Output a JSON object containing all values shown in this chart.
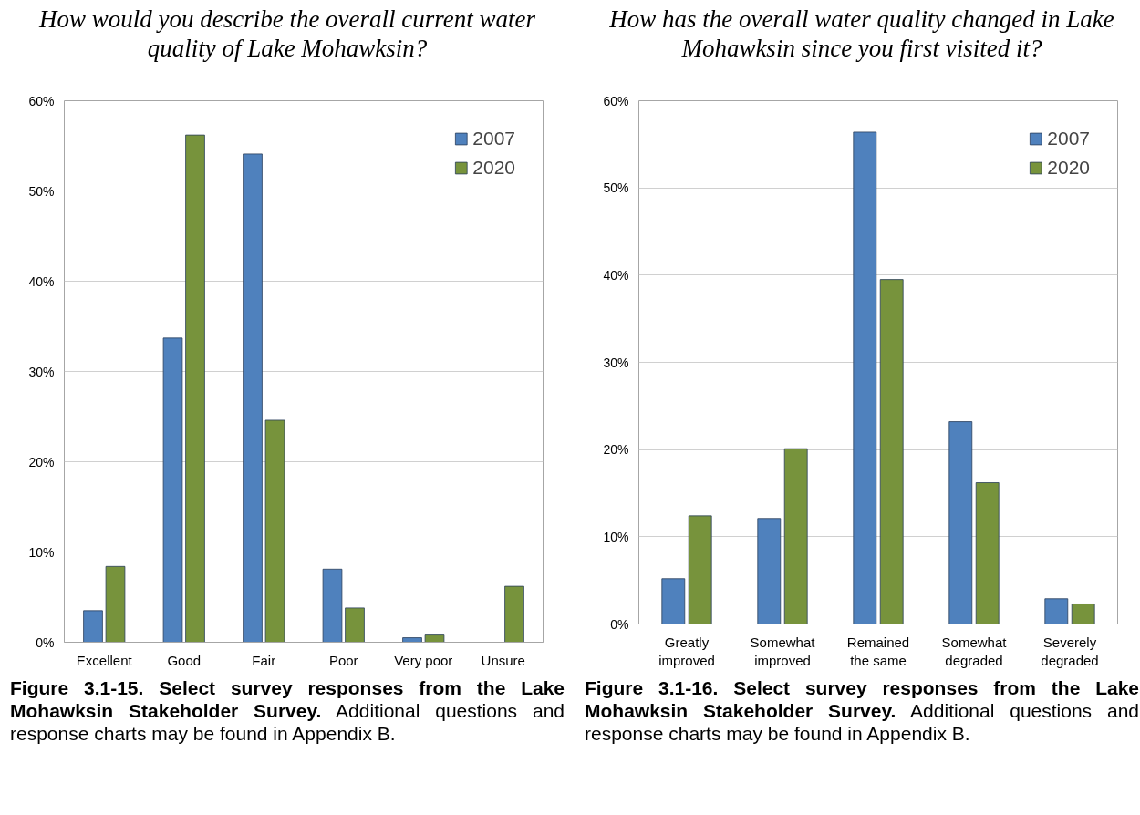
{
  "chart_data": [
    {
      "type": "bar",
      "title": "How would you describe the overall current water quality of Lake Mohawksin?",
      "categories": [
        "Excellent",
        "Good",
        "Fair",
        "Poor",
        "Very poor",
        "Unsure"
      ],
      "series": [
        {
          "name": "2007",
          "color": "#4f81bd",
          "values": [
            3.5,
            33.7,
            54.1,
            8.1,
            0.5,
            null
          ]
        },
        {
          "name": "2020",
          "color": "#77933c",
          "values": [
            8.4,
            56.2,
            24.6,
            3.8,
            0.8,
            6.2
          ]
        }
      ],
      "ylim": [
        0,
        60
      ],
      "yticks": [
        {
          "value": 0,
          "label": "0%"
        },
        {
          "value": 10,
          "label": "10%"
        },
        {
          "value": 20,
          "label": "20%"
        },
        {
          "value": 30,
          "label": "30%"
        },
        {
          "value": 40,
          "label": "40%"
        },
        {
          "value": 50,
          "label": "50%"
        },
        {
          "value": 60,
          "label": "60%"
        }
      ],
      "grid": "y",
      "legend": "top right",
      "annotations": [
        "Figure 3.1-15.  Select survey responses from the Lake Mohawksin Stakeholder Survey.",
        "Additional questions and response charts may be found in Appendix B."
      ]
    },
    {
      "type": "bar",
      "title": "How has the overall water quality changed in Lake Mohawksin since you first visited it?",
      "categories": [
        "Greatly improved",
        "Somewhat improved",
        "Remained the same",
        "Somewhat degraded",
        "Severely degraded"
      ],
      "series": [
        {
          "name": "2007",
          "color": "#4f81bd",
          "values": [
            5.2,
            12.1,
            56.4,
            23.2,
            2.9
          ]
        },
        {
          "name": "2020",
          "color": "#77933c",
          "values": [
            12.4,
            20.1,
            39.5,
            16.2,
            2.3
          ]
        }
      ],
      "ylim": [
        0,
        60
      ],
      "yticks": [
        {
          "value": 0,
          "label": "0%"
        },
        {
          "value": 10,
          "label": "10%"
        },
        {
          "value": 20,
          "label": "20%"
        },
        {
          "value": 30,
          "label": "30%"
        },
        {
          "value": 40,
          "label": "40%"
        },
        {
          "value": 50,
          "label": "50%"
        },
        {
          "value": 60,
          "label": "60%"
        }
      ],
      "grid": "y",
      "legend": "top right",
      "annotations": [
        "Figure 3.1-16.  Select survey responses from the Lake Mohawksin Stakeholder Survey.",
        "Additional questions and response charts may be found in Appendix B."
      ]
    }
  ]
}
